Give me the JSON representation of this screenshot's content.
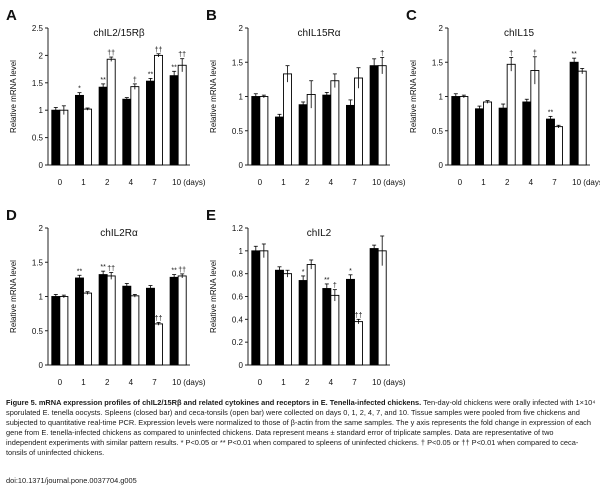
{
  "chart_data": [
    {
      "panel": "A",
      "type": "bar",
      "title": "chIL2/15Rβ",
      "ylabel": "Relative mRNA level",
      "categories": [
        "0",
        "1",
        "2",
        "4",
        "7",
        "10 (days)"
      ],
      "ylim": [
        0,
        2.5
      ],
      "yticks": [
        "0",
        "0.5",
        "1",
        "1.5",
        "2",
        "2.5"
      ],
      "series": [
        {
          "values": [
            1.0,
            1.27,
            1.42,
            1.2,
            1.53,
            1.63
          ],
          "errors": [
            0.05,
            0.05,
            0.06,
            0.03,
            0.05,
            0.08
          ],
          "marks": [
            "",
            "*",
            "**",
            "",
            "**",
            "**"
          ]
        },
        {
          "values": [
            1.0,
            1.02,
            1.93,
            1.43,
            2.0,
            1.82
          ],
          "errors": [
            0.08,
            0.02,
            0.04,
            0.05,
            0.03,
            0.12
          ],
          "marks": [
            "",
            "",
            "††",
            "†",
            "††",
            "††"
          ]
        }
      ]
    },
    {
      "panel": "B",
      "type": "bar",
      "title": "chIL15Rα",
      "ylabel": "Relative mRNA level",
      "categories": [
        "0",
        "1",
        "2",
        "4",
        "7",
        "10 (days)"
      ],
      "ylim": [
        0,
        2
      ],
      "yticks": [
        "0",
        "0.5",
        "1",
        "1.5",
        "2"
      ],
      "series": [
        {
          "values": [
            1.0,
            0.7,
            0.88,
            1.02,
            0.87,
            1.45
          ],
          "errors": [
            0.04,
            0.04,
            0.04,
            0.04,
            0.08,
            0.1
          ],
          "marks": [
            "",
            "",
            "",
            "",
            "",
            ""
          ]
        },
        {
          "values": [
            1.0,
            1.33,
            1.03,
            1.23,
            1.27,
            1.45
          ],
          "errors": [
            0.02,
            0.12,
            0.2,
            0.1,
            0.15,
            0.12
          ],
          "marks": [
            "",
            "",
            "",
            "",
            "",
            "†"
          ]
        }
      ]
    },
    {
      "panel": "C",
      "type": "bar",
      "title": "chIL15",
      "ylabel": "Relative mRNA level",
      "categories": [
        "0",
        "1",
        "2",
        "4",
        "7",
        "10 (days)"
      ],
      "ylim": [
        0,
        2
      ],
      "yticks": [
        "0",
        "0.5",
        "1",
        "1.5",
        "2"
      ],
      "series": [
        {
          "values": [
            1.0,
            0.82,
            0.83,
            0.92,
            0.67,
            1.5
          ],
          "errors": [
            0.04,
            0.04,
            0.06,
            0.04,
            0.04,
            0.06
          ],
          "marks": [
            "",
            "",
            "",
            "",
            "**",
            "**"
          ]
        },
        {
          "values": [
            1.0,
            0.92,
            1.47,
            1.38,
            0.56,
            1.37
          ],
          "errors": [
            0.02,
            0.02,
            0.1,
            0.2,
            0.02,
            0.04
          ],
          "marks": [
            "",
            "",
            "†",
            "†",
            "",
            ""
          ]
        }
      ]
    },
    {
      "panel": "D",
      "type": "bar",
      "title": "chIL2Rα",
      "ylabel": "Relative mRNA level",
      "categories": [
        "0",
        "1",
        "2",
        "4",
        "7",
        "10 (days)"
      ],
      "ylim": [
        0,
        2
      ],
      "yticks": [
        "0",
        "0.5",
        "1",
        "1.5",
        "2"
      ],
      "series": [
        {
          "values": [
            1.0,
            1.27,
            1.32,
            1.15,
            1.12,
            1.28
          ],
          "errors": [
            0.03,
            0.04,
            0.05,
            0.04,
            0.04,
            0.04
          ],
          "marks": [
            "",
            "**",
            "**",
            "",
            "",
            "**"
          ]
        },
        {
          "values": [
            1.0,
            1.05,
            1.3,
            1.01,
            0.6,
            1.3
          ],
          "errors": [
            0.02,
            0.02,
            0.05,
            0.02,
            0.02,
            0.03
          ],
          "marks": [
            "",
            "",
            "††",
            "",
            "††",
            "††"
          ]
        }
      ]
    },
    {
      "panel": "E",
      "type": "bar",
      "title": "chIL2",
      "ylabel": "Relative mRNA level",
      "categories": [
        "0",
        "1",
        "2",
        "4",
        "7",
        "10 (days)"
      ],
      "ylim": [
        0,
        1.2
      ],
      "yticks": [
        "0",
        "0.2",
        "0.4",
        "0.6",
        "0.8",
        "1",
        "1.2"
      ],
      "series": [
        {
          "values": [
            1.0,
            0.83,
            0.74,
            0.67,
            0.75,
            1.02
          ],
          "errors": [
            0.04,
            0.03,
            0.04,
            0.04,
            0.04,
            0.03
          ],
          "marks": [
            "",
            "",
            "*",
            "**",
            "*",
            ""
          ]
        },
        {
          "values": [
            1.0,
            0.8,
            0.88,
            0.61,
            0.38,
            1.0
          ],
          "errors": [
            0.06,
            0.03,
            0.04,
            0.05,
            0.02,
            0.13
          ],
          "marks": [
            "",
            "",
            "",
            "†",
            "††",
            ""
          ]
        }
      ]
    }
  ],
  "colors": {
    "closed_bar": "#000000",
    "open_bar": "#ffffff",
    "axis": "#222222"
  },
  "caption": {
    "title": "Figure 5. mRNA expression profiles of chIL2/15Rβ and related cytokines and receptors in E. Tenella-infected chickens.",
    "body": "Ten-day-old chickens were orally infected with 1×10⁴ sporulated E. tenella oocysts. Spleens (closed bar) and ceca-tonsils (open bar) were collected on days 0, 1, 2, 4, 7, and 10. Tissue samples were pooled from five chickens and subjected to quantitative real-time PCR. Expression levels were normalized to those of β-actin from the same samples. The y axis represents the fold change in expression of each gene from E. tenella-infected chickens as compared to uninfected chickens. Data represent means ± standard error of triplicate samples. Data are representative of two independent experiments with similar pattern results. * P<0.05 or ** P<0.01 when compared to spleens of uninfected chickens. † P<0.05 or †† P<0.01 when compared to ceca-tonsils of uninfected chickens."
  },
  "doi": "doi:10.1371/journal.pone.0037704.g005"
}
